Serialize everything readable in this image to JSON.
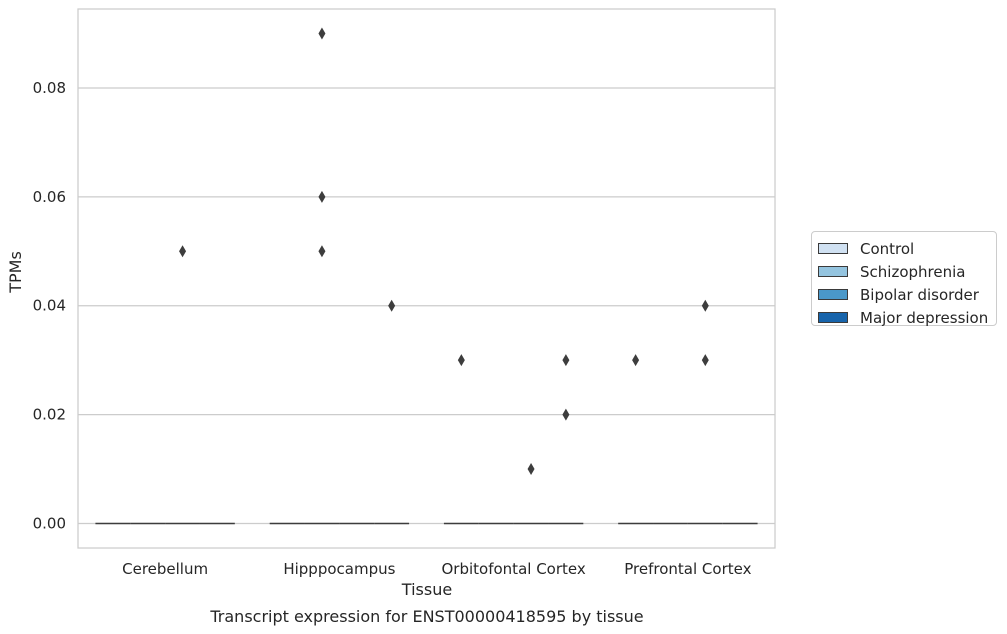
{
  "chart_data": {
    "type": "box",
    "title": "Transcript expression for ENST00000418595 by tissue",
    "xlabel": "Tissue",
    "ylabel": "TPMs",
    "ylim": [
      -0.0045,
      0.0945
    ],
    "yticks": [
      0.0,
      0.02,
      0.04,
      0.06,
      0.08
    ],
    "ytick_labels": [
      "0.00",
      "0.02",
      "0.04",
      "0.06",
      "0.08"
    ],
    "grid": true,
    "legend_position": "right",
    "categories": [
      "Cerebellum",
      "Hipppocampus",
      "Orbitofontal Cortex",
      "Prefrontal Cortex"
    ],
    "series": [
      {
        "name": "Control",
        "color": "#d0e1f2",
        "median": [
          0,
          0,
          0,
          0
        ],
        "outliers": [
          [],
          [],
          [
            0.03
          ],
          [
            0.03
          ]
        ]
      },
      {
        "name": "Schizophrenia",
        "color": "#94c4df",
        "median": [
          0,
          0,
          0,
          0
        ],
        "outliers": [
          [],
          [
            0.06,
            0.05,
            0.09
          ],
          [],
          []
        ]
      },
      {
        "name": "Bipolar disorder",
        "color": "#4a98c9",
        "median": [
          0,
          0,
          0,
          0
        ],
        "outliers": [
          [
            0.05
          ],
          [],
          [
            0.01
          ],
          [
            0.03,
            0.04
          ]
        ]
      },
      {
        "name": "Major depression",
        "color": "#1764ab",
        "median": [
          0,
          0,
          0,
          0
        ],
        "outliers": [
          [],
          [
            0.04
          ],
          [
            0.02,
            0.03
          ],
          []
        ]
      }
    ]
  }
}
